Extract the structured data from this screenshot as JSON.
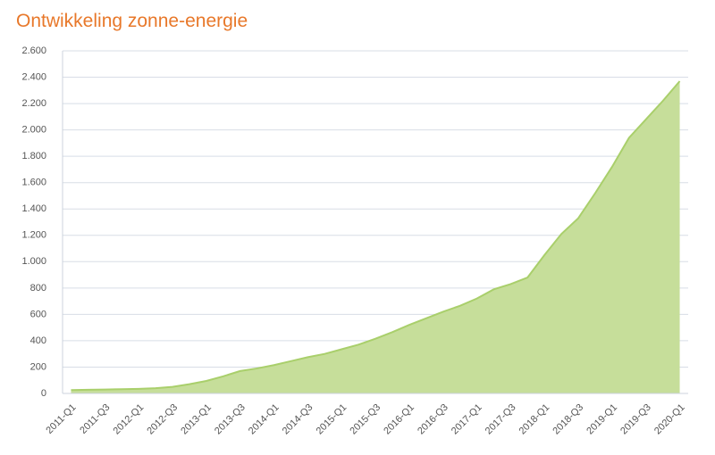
{
  "chart_data": {
    "type": "area",
    "title": "Ontwikkeling zonne-energie",
    "categories": [
      "2011-Q1",
      null,
      "2011-Q3",
      null,
      "2012-Q1",
      null,
      "2012-Q3",
      null,
      "2013-Q1",
      null,
      "2013-Q3",
      null,
      "2014-Q1",
      null,
      "2014-Q3",
      null,
      "2015-Q1",
      null,
      "2015-Q3",
      null,
      "2016-Q1",
      null,
      "2016-Q3",
      null,
      "2017-Q1",
      null,
      "2017-Q3",
      null,
      "2018-Q1",
      null,
      "2018-Q3",
      null,
      "2019-Q1",
      null,
      "2019-Q3",
      null,
      "2020-Q1"
    ],
    "values": [
      25,
      28,
      30,
      32,
      35,
      40,
      50,
      70,
      95,
      130,
      170,
      190,
      215,
      245,
      275,
      300,
      335,
      370,
      415,
      465,
      520,
      570,
      620,
      665,
      720,
      790,
      830,
      880,
      1050,
      1210,
      1330,
      1520,
      1720,
      1940,
      2080,
      2220,
      2370
    ],
    "color": "#c6de9a",
    "line_color": "#a9cf6b",
    "ylim": [
      0,
      2600
    ],
    "yticks": [
      0,
      200,
      400,
      600,
      800,
      {
        "value": 1000,
        "label": "1.000"
      },
      {
        "value": 1200,
        "label": "1.200"
      },
      {
        "value": 1400,
        "label": "1.400"
      },
      {
        "value": 1600,
        "label": "1.600"
      },
      {
        "value": 1800,
        "label": "1.800"
      },
      {
        "value": 2000,
        "label": "2.000"
      },
      {
        "value": 2200,
        "label": "2.200"
      },
      {
        "value": 2400,
        "label": "2.400"
      },
      {
        "value": 2600,
        "label": "2.600"
      }
    ],
    "grid": true
  }
}
